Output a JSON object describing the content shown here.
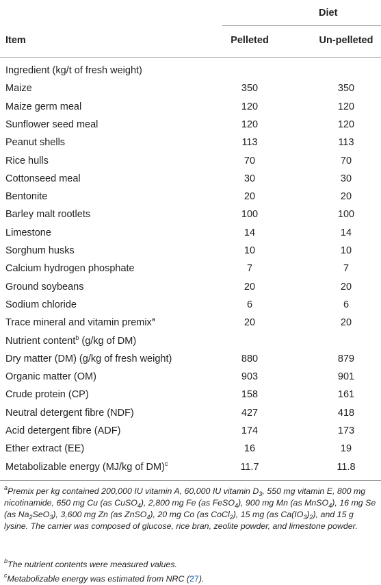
{
  "header": {
    "group": "Diet",
    "columns": [
      "Item",
      "Pelleted",
      "Un-pelleted"
    ]
  },
  "table": {
    "rows": [
      {
        "item": "Ingredient (kg/t of fresh weight)"
      },
      {
        "item": "Maize",
        "pelleted": 350,
        "unpelleted": 350
      },
      {
        "item": "Maize germ meal",
        "pelleted": 120,
        "unpelleted": 120
      },
      {
        "item": "Sunflower seed meal",
        "pelleted": 120,
        "unpelleted": 120
      },
      {
        "item": "Peanut shells",
        "pelleted": 113,
        "unpelleted": 113
      },
      {
        "item": "Rice hulls",
        "pelleted": 70,
        "unpelleted": 70
      },
      {
        "item": "Cottonseed meal",
        "pelleted": 30,
        "unpelleted": 30
      },
      {
        "item": "Bentonite",
        "pelleted": 20,
        "unpelleted": 20
      },
      {
        "item": "Barley malt rootlets",
        "pelleted": 100,
        "unpelleted": 100
      },
      {
        "item": "Limestone",
        "pelleted": 14,
        "unpelleted": 14
      },
      {
        "item": "Sorghum husks",
        "pelleted": 10,
        "unpelleted": 10
      },
      {
        "item": "Calcium hydrogen phosphate",
        "pelleted": 7,
        "unpelleted": 7
      },
      {
        "item": "Ground soybeans",
        "pelleted": 20,
        "unpelleted": 20
      },
      {
        "item": "Sodium chloride",
        "pelleted": 6,
        "unpelleted": 6
      },
      {
        "item": "Trace mineral and vitamin premix",
        "sup": "a",
        "pelleted": 20,
        "unpelleted": 20
      },
      {
        "item": "Nutrient content",
        "sup": "b",
        "suffix": "(g/kg of DM)"
      },
      {
        "item": "Dry matter (DM) (g/kg of fresh weight)",
        "pelleted": 880,
        "unpelleted": 879
      },
      {
        "item": "Organic matter (OM)",
        "pelleted": 903,
        "unpelleted": 901
      },
      {
        "item": "Crude protein (CP)",
        "pelleted": 158,
        "unpelleted": 161
      },
      {
        "item": "Neutral detergent fibre (NDF)",
        "pelleted": 427,
        "unpelleted": 418
      },
      {
        "item": "Acid detergent fibre (ADF)",
        "pelleted": 174,
        "unpelleted": 173
      },
      {
        "item": "Ether extract (EE)",
        "pelleted": 16,
        "unpelleted": 19
      },
      {
        "item": "Metabolizable energy (MJ/kg of DM)",
        "sup": "c",
        "pelleted": 11.7,
        "unpelleted": 11.8
      }
    ]
  },
  "footnotes": [
    {
      "mark": "a",
      "parts": [
        {
          "text": "Premix per kg contained 200,000 IU vitamin A, 60,000 IU vitamin D",
          "sub": "3"
        },
        {
          "text": ", 550 mg vitamin E, 800 mg nicotinamide, 650 mg Cu (as CuSO",
          "sub": "4"
        },
        {
          "text": "), 2,800 mg Fe (as FeSO",
          "sub": "4"
        },
        {
          "text": "), 900 mg Mn (as MnSO",
          "sub": "4"
        },
        {
          "text": "), 16 mg Se (as Na",
          "sub": "2"
        },
        {
          "text": "SeO",
          "sub": "3"
        },
        {
          "text": "), 3,600 mg Zn (as ZnSO",
          "sub": "4"
        },
        {
          "text": "), 20 mg Co (as CoCl",
          "sub": "2"
        },
        {
          "text": "), 15 mg (as Ca(IO",
          "sub": "3"
        },
        {
          "text": ")",
          "sub": "2"
        },
        {
          "text": "), and 15 g lysine. The carrier was composed of glucose, rice bran, zeolite powder, and limestone powder."
        }
      ]
    },
    {
      "mark": "b",
      "parts": [
        {
          "text": "The nutrient contents were measured values."
        }
      ]
    },
    {
      "mark": "c",
      "parts": [
        {
          "text": "Metabolizable energy was estimated from NRC ("
        },
        {
          "text": "27",
          "link": true
        },
        {
          "text": ")."
        }
      ]
    }
  ]
}
